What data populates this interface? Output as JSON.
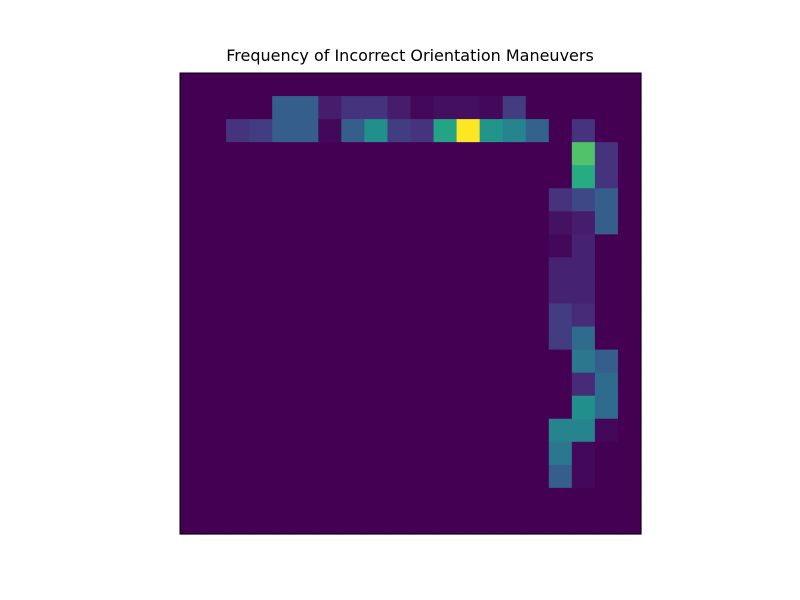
{
  "chart_data": {
    "type": "heatmap",
    "title": "Frequency of Incorrect Orientation Maneuvers",
    "xlabel": "",
    "ylabel": "",
    "axes_visible": false,
    "grid": false,
    "legend": "none",
    "colormap": "viridis",
    "value_range": [
      0,
      1
    ],
    "colors": {
      "frame": "#000000",
      "background": "#ffffff"
    },
    "rows": 20,
    "cols": 20,
    "values": [
      [
        0,
        0,
        0,
        0,
        0,
        0,
        0,
        0,
        0,
        0,
        0,
        0,
        0,
        0,
        0,
        0,
        0,
        0,
        0,
        0
      ],
      [
        0,
        0,
        0,
        0,
        0.3,
        0.3,
        0.08,
        0.15,
        0.15,
        0.08,
        0.02,
        0.04,
        0.04,
        0.02,
        0.18,
        0,
        0,
        0,
        0,
        0
      ],
      [
        0,
        0,
        0.15,
        0.18,
        0.3,
        0.3,
        0.02,
        0.3,
        0.5,
        0.18,
        0.15,
        0.58,
        1.0,
        0.52,
        0.45,
        0.32,
        0,
        0.15,
        0,
        0
      ],
      [
        0,
        0,
        0,
        0,
        0,
        0,
        0,
        0,
        0,
        0,
        0,
        0,
        0,
        0,
        0,
        0,
        0,
        0.72,
        0.15,
        0
      ],
      [
        0,
        0,
        0,
        0,
        0,
        0,
        0,
        0,
        0,
        0,
        0,
        0,
        0,
        0,
        0,
        0,
        0,
        0.62,
        0.15,
        0
      ],
      [
        0,
        0,
        0,
        0,
        0,
        0,
        0,
        0,
        0,
        0,
        0,
        0,
        0,
        0,
        0,
        0,
        0.15,
        0.22,
        0.3,
        0
      ],
      [
        0,
        0,
        0,
        0,
        0,
        0,
        0,
        0,
        0,
        0,
        0,
        0,
        0,
        0,
        0,
        0,
        0.05,
        0.08,
        0.3,
        0
      ],
      [
        0,
        0,
        0,
        0,
        0,
        0,
        0,
        0,
        0,
        0,
        0,
        0,
        0,
        0,
        0,
        0,
        0.02,
        0.1,
        0,
        0
      ],
      [
        0,
        0,
        0,
        0,
        0,
        0,
        0,
        0,
        0,
        0,
        0,
        0,
        0,
        0,
        0,
        0,
        0.1,
        0.1,
        0,
        0
      ],
      [
        0,
        0,
        0,
        0,
        0,
        0,
        0,
        0,
        0,
        0,
        0,
        0,
        0,
        0,
        0,
        0,
        0.1,
        0.1,
        0,
        0
      ],
      [
        0,
        0,
        0,
        0,
        0,
        0,
        0,
        0,
        0,
        0,
        0,
        0,
        0,
        0,
        0,
        0,
        0.18,
        0.12,
        0,
        0
      ],
      [
        0,
        0,
        0,
        0,
        0,
        0,
        0,
        0,
        0,
        0,
        0,
        0,
        0,
        0,
        0,
        0,
        0.18,
        0.35,
        0,
        0
      ],
      [
        0,
        0,
        0,
        0,
        0,
        0,
        0,
        0,
        0,
        0,
        0,
        0,
        0,
        0,
        0,
        0,
        0,
        0.4,
        0.3,
        0
      ],
      [
        0,
        0,
        0,
        0,
        0,
        0,
        0,
        0,
        0,
        0,
        0,
        0,
        0,
        0,
        0,
        0,
        0,
        0.12,
        0.35,
        0
      ],
      [
        0,
        0,
        0,
        0,
        0,
        0,
        0,
        0,
        0,
        0,
        0,
        0,
        0,
        0,
        0,
        0,
        0,
        0.5,
        0.35,
        0
      ],
      [
        0,
        0,
        0,
        0,
        0,
        0,
        0,
        0,
        0,
        0,
        0,
        0,
        0,
        0,
        0,
        0,
        0.45,
        0.45,
        0.02,
        0
      ],
      [
        0,
        0,
        0,
        0,
        0,
        0,
        0,
        0,
        0,
        0,
        0,
        0,
        0,
        0,
        0,
        0,
        0.4,
        0.02,
        0,
        0
      ],
      [
        0,
        0,
        0,
        0,
        0,
        0,
        0,
        0,
        0,
        0,
        0,
        0,
        0,
        0,
        0,
        0,
        0.3,
        0.02,
        0,
        0
      ],
      [
        0,
        0,
        0,
        0,
        0,
        0,
        0,
        0,
        0,
        0,
        0,
        0,
        0,
        0,
        0,
        0,
        0,
        0,
        0,
        0
      ],
      [
        0,
        0,
        0,
        0,
        0,
        0,
        0,
        0,
        0,
        0,
        0,
        0,
        0,
        0,
        0,
        0,
        0,
        0,
        0,
        0
      ]
    ]
  }
}
